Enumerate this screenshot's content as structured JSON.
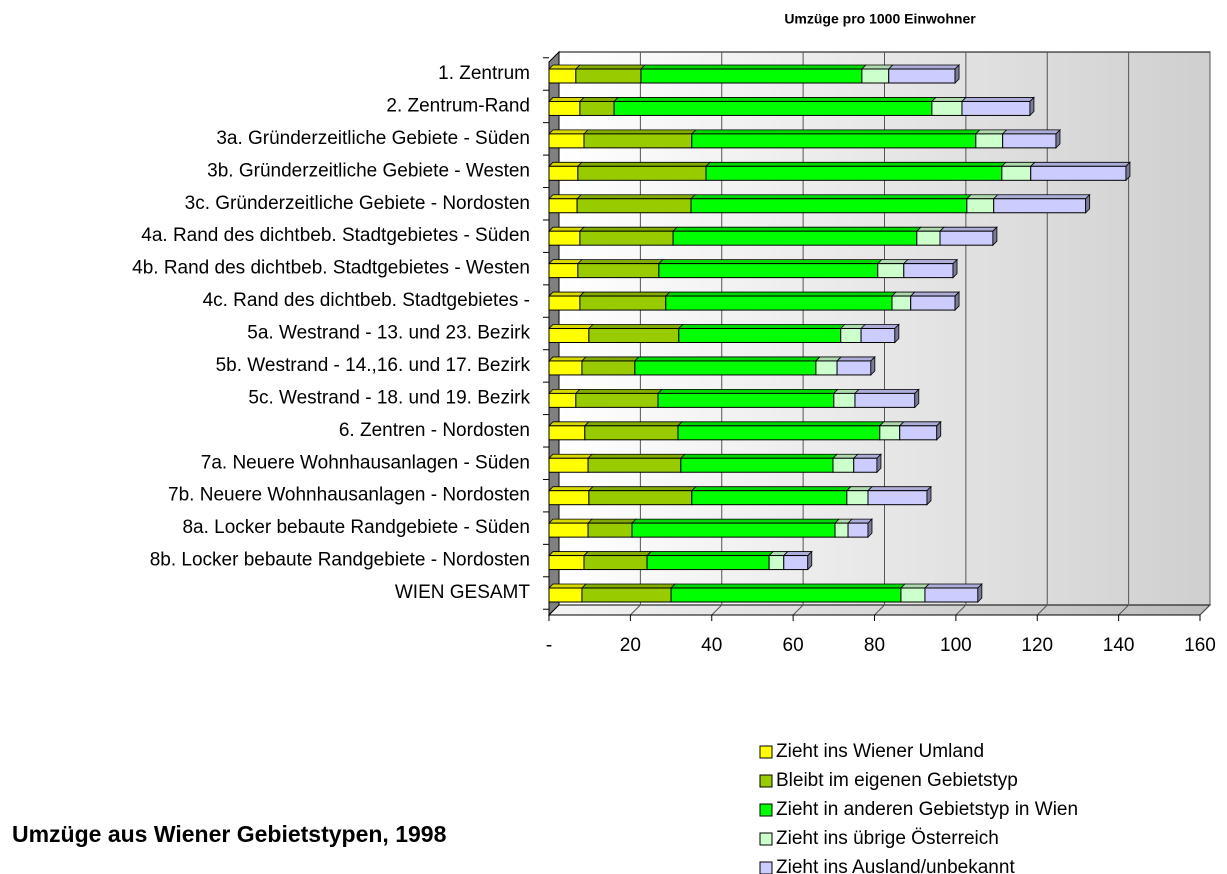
{
  "chart_data": {
    "type": "stacked_barh",
    "title": "Umzüge pro 1000 Einwohner",
    "subtitle": "Umzüge aus Wiener Gebietstypen, 1998",
    "categories": [
      "1. Zentrum",
      "2. Zentrum-Rand",
      "3a. Gründerzeitliche Gebiete - Süden",
      "3b. Gründerzeitliche Gebiete - Westen",
      "3c. Gründerzeitliche Gebiete - Nordosten",
      "4a. Rand des dichtbeb. Stadtgebietes - Süden",
      "4b. Rand des dichtbeb. Stadtgebietes - Westen",
      "4c. Rand des dichtbeb. Stadtgebietes -",
      "5a. Westrand - 13. und 23. Bezirk",
      "5b. Westrand - 14.,16. und 17. Bezirk",
      "5c. Westrand - 18. und 19. Bezirk",
      "6. Zentren - Nordosten",
      "7a. Neuere Wohnhausanlagen - Süden",
      "7b. Neuere Wohnhausanlagen - Nordosten",
      "8a. Locker bebaute Randgebiete - Süden",
      "8b. Locker bebaute Randgebiete - Nordosten",
      "WIEN GESAMT"
    ],
    "series": [
      {
        "name": "Zieht ins Wiener Umland",
        "color": "#ffff00",
        "values": [
          6.6,
          7.6,
          8.6,
          7.1,
          6.9,
          7.6,
          7.1,
          7.6,
          9.8,
          8.1,
          6.6,
          8.8,
          9.6,
          9.8,
          9.6,
          8.6,
          8.1
        ]
      },
      {
        "name": "Bleibt im eigenen Gebietstyp",
        "color": "#99cc00",
        "values": [
          16.0,
          8.4,
          26.5,
          31.5,
          28.0,
          22.9,
          19.9,
          21.1,
          22.1,
          13.0,
          20.2,
          22.9,
          22.8,
          25.3,
          10.8,
          15.5,
          21.9
        ]
      },
      {
        "name": "Zieht in anderen Gebietstyp in Wien",
        "color": "#00ff00",
        "values": [
          54.3,
          78.1,
          69.8,
          72.7,
          67.8,
          59.9,
          53.8,
          55.6,
          39.8,
          44.5,
          43.2,
          49.6,
          37.4,
          38.1,
          49.9,
          30.0,
          56.5
        ]
      },
      {
        "name": "Zieht ins übrige Österreich",
        "color": "#ccffcc",
        "values": [
          6.6,
          7.4,
          6.6,
          7.1,
          6.6,
          5.7,
          6.4,
          4.6,
          5.0,
          5.2,
          5.2,
          4.9,
          5.1,
          5.2,
          3.2,
          3.6,
          5.9
        ]
      },
      {
        "name": "Zieht ins Ausland/unbekannt",
        "color": "#ccccff",
        "values": [
          16.3,
          16.7,
          13.1,
          23.4,
          22.6,
          13.0,
          12.1,
          10.9,
          8.3,
          8.3,
          14.7,
          9.1,
          5.7,
          14.5,
          4.9,
          5.9,
          13.0
        ]
      }
    ],
    "xlim": [
      0,
      160
    ],
    "xticks": [
      {
        "value": 0,
        "label": "-"
      },
      20,
      40,
      60,
      80,
      100,
      120,
      140,
      160
    ],
    "grid": true
  }
}
